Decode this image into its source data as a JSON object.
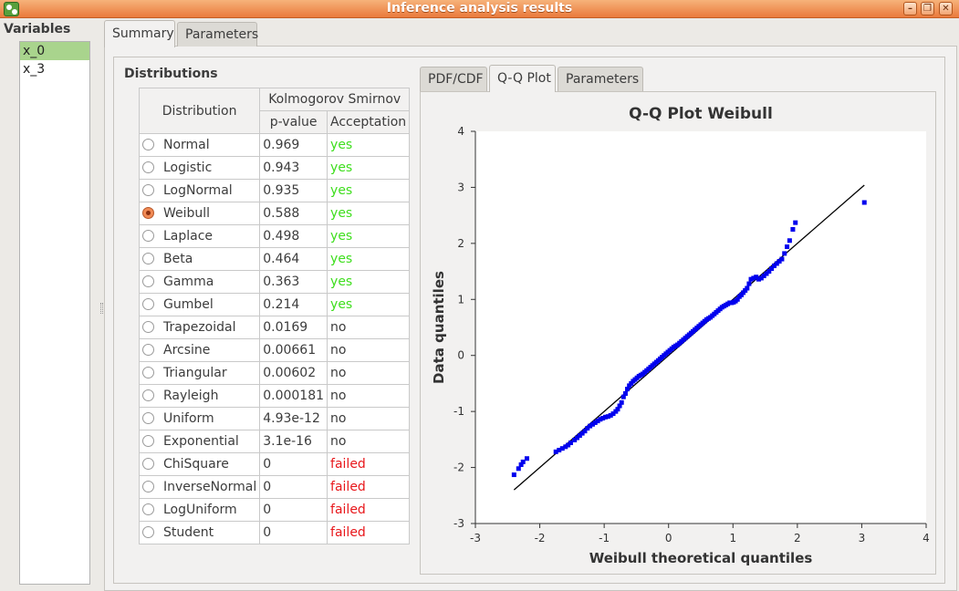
{
  "window": {
    "title": "Inference analysis results"
  },
  "variables": {
    "header": "Variables",
    "items": [
      {
        "label": "x_0",
        "selected": true
      },
      {
        "label": "x_3",
        "selected": false
      }
    ]
  },
  "main_tabs": [
    "Summary",
    "Parameters"
  ],
  "distributions": {
    "group_title": "Distributions",
    "col_distribution": "Distribution",
    "col_test": "Kolmogorov Smirnov",
    "col_pvalue": "p-value",
    "col_acceptation": "Acceptation",
    "rows": [
      {
        "name": "Normal",
        "pvalue": "0.969",
        "acceptation": "yes",
        "selected": false
      },
      {
        "name": "Logistic",
        "pvalue": "0.943",
        "acceptation": "yes",
        "selected": false
      },
      {
        "name": "LogNormal",
        "pvalue": "0.935",
        "acceptation": "yes",
        "selected": false
      },
      {
        "name": "Weibull",
        "pvalue": "0.588",
        "acceptation": "yes",
        "selected": true
      },
      {
        "name": "Laplace",
        "pvalue": "0.498",
        "acceptation": "yes",
        "selected": false
      },
      {
        "name": "Beta",
        "pvalue": "0.464",
        "acceptation": "yes",
        "selected": false
      },
      {
        "name": "Gamma",
        "pvalue": "0.363",
        "acceptation": "yes",
        "selected": false
      },
      {
        "name": "Gumbel",
        "pvalue": "0.214",
        "acceptation": "yes",
        "selected": false
      },
      {
        "name": "Trapezoidal",
        "pvalue": "0.0169",
        "acceptation": "no",
        "selected": false
      },
      {
        "name": "Arcsine",
        "pvalue": "0.00661",
        "acceptation": "no",
        "selected": false
      },
      {
        "name": "Triangular",
        "pvalue": "0.00602",
        "acceptation": "no",
        "selected": false
      },
      {
        "name": "Rayleigh",
        "pvalue": "0.000181",
        "acceptation": "no",
        "selected": false
      },
      {
        "name": "Uniform",
        "pvalue": "4.93e-12",
        "acceptation": "no",
        "selected": false
      },
      {
        "name": "Exponential",
        "pvalue": "3.1e-16",
        "acceptation": "no",
        "selected": false
      },
      {
        "name": "ChiSquare",
        "pvalue": "0",
        "acceptation": "failed",
        "selected": false
      },
      {
        "name": "InverseNormal",
        "pvalue": "0",
        "acceptation": "failed",
        "selected": false
      },
      {
        "name": "LogUniform",
        "pvalue": "0",
        "acceptation": "failed",
        "selected": false
      },
      {
        "name": "Student",
        "pvalue": "0",
        "acceptation": "failed",
        "selected": false
      }
    ]
  },
  "plot_tabs": [
    "PDF/CDF",
    "Q-Q Plot",
    "Parameters"
  ],
  "colors": {
    "yes": "#3ede1d",
    "failed": "#e8171b",
    "points": "#0000ee",
    "selection": "#a9d48d"
  },
  "chart_data": {
    "type": "scatter",
    "title": "Q-Q Plot Weibull",
    "xlabel": "Weibull theoretical quantiles",
    "ylabel": "Data quantiles",
    "xlim": [
      -3,
      4
    ],
    "ylim": [
      -3,
      4
    ],
    "xticks": [
      "-3",
      "-2",
      "-1",
      "0",
      "1",
      "2",
      "3",
      "4"
    ],
    "yticks": [
      "-3",
      "-2",
      "-1",
      "0",
      "1",
      "2",
      "3",
      "4"
    ],
    "grid": false,
    "reference_line": {
      "x": [
        -2.4,
        3.04
      ],
      "y": [
        -2.4,
        3.04
      ]
    },
    "x": [
      -2.4,
      -2.33,
      -2.29,
      -2.26,
      -2.2,
      -1.75,
      -1.7,
      -1.65,
      -1.6,
      -1.56,
      -1.52,
      -1.46,
      -1.42,
      -1.38,
      -1.34,
      -1.3,
      -1.26,
      -1.22,
      -1.18,
      -1.14,
      -1.1,
      -1.06,
      -1.02,
      -0.98,
      -0.94,
      -0.9,
      -0.86,
      -0.82,
      -0.79,
      -0.76,
      -0.73,
      -0.7,
      -0.67,
      -0.64,
      -0.61,
      -0.58,
      -0.55,
      -0.52,
      -0.49,
      -0.46,
      -0.43,
      -0.4,
      -0.37,
      -0.34,
      -0.31,
      -0.28,
      -0.25,
      -0.22,
      -0.19,
      -0.16,
      -0.13,
      -0.1,
      -0.07,
      -0.04,
      -0.01,
      0.02,
      0.05,
      0.08,
      0.11,
      0.14,
      0.17,
      0.2,
      0.23,
      0.26,
      0.29,
      0.32,
      0.35,
      0.38,
      0.41,
      0.44,
      0.47,
      0.5,
      0.53,
      0.56,
      0.59,
      0.62,
      0.65,
      0.68,
      0.71,
      0.74,
      0.77,
      0.8,
      0.83,
      0.86,
      0.89,
      0.92,
      0.95,
      0.98,
      1.01,
      1.04,
      1.07,
      1.1,
      1.13,
      1.16,
      1.19,
      1.22,
      1.25,
      1.28,
      1.32,
      1.36,
      1.4,
      1.44,
      1.48,
      1.52,
      1.56,
      1.6,
      1.64,
      1.68,
      1.72,
      1.76,
      1.8,
      1.84,
      1.88,
      1.93,
      1.97,
      3.04
    ],
    "y": [
      -2.13,
      -2.02,
      -1.95,
      -1.9,
      -1.84,
      -1.72,
      -1.69,
      -1.66,
      -1.63,
      -1.6,
      -1.56,
      -1.51,
      -1.47,
      -1.43,
      -1.39,
      -1.35,
      -1.3,
      -1.26,
      -1.23,
      -1.2,
      -1.17,
      -1.14,
      -1.12,
      -1.1,
      -1.09,
      -1.07,
      -1.04,
      -1.0,
      -0.96,
      -0.9,
      -0.84,
      -0.74,
      -0.68,
      -0.6,
      -0.54,
      -0.5,
      -0.46,
      -0.43,
      -0.4,
      -0.37,
      -0.35,
      -0.33,
      -0.3,
      -0.27,
      -0.24,
      -0.21,
      -0.18,
      -0.15,
      -0.12,
      -0.09,
      -0.06,
      -0.03,
      0.0,
      0.03,
      0.06,
      0.09,
      0.12,
      0.15,
      0.17,
      0.19,
      0.22,
      0.25,
      0.28,
      0.31,
      0.34,
      0.37,
      0.4,
      0.43,
      0.46,
      0.49,
      0.52,
      0.55,
      0.58,
      0.61,
      0.64,
      0.66,
      0.68,
      0.71,
      0.74,
      0.77,
      0.8,
      0.83,
      0.86,
      0.88,
      0.9,
      0.92,
      0.94,
      0.94,
      0.95,
      0.97,
      1.0,
      1.05,
      1.08,
      1.12,
      1.16,
      1.2,
      1.28,
      1.36,
      1.38,
      1.4,
      1.36,
      1.38,
      1.42,
      1.46,
      1.5,
      1.55,
      1.6,
      1.64,
      1.68,
      1.72,
      1.82,
      1.94,
      2.05,
      2.25,
      2.37,
      2.73
    ]
  }
}
